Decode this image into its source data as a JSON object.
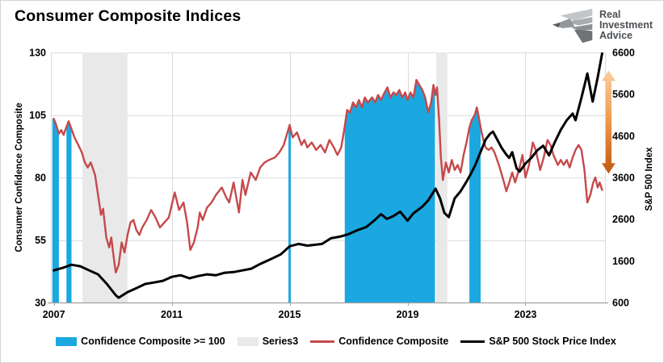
{
  "header": {
    "title": "Consumer Composite Indices",
    "logo_lines": [
      "Real",
      "Investment",
      "Advice"
    ]
  },
  "chart_data": {
    "type": "line",
    "title": "Consumer Composite Indices",
    "grid": true,
    "legend_position": "bottom",
    "x_axis": {
      "min": 2006.9,
      "max": 2025.7,
      "ticks": [
        2007,
        2011,
        2015,
        2019,
        2023
      ]
    },
    "y_left": {
      "label": "Consumer Confidence Composite",
      "min": 30,
      "max": 130,
      "ticks": [
        130,
        105,
        80,
        55,
        30
      ]
    },
    "y_right": {
      "label": "S&P 500 Index",
      "min": 600,
      "max": 6600,
      "ticks": [
        6600,
        5600,
        4600,
        3600,
        2600,
        1600,
        600
      ]
    },
    "colors": {
      "blue": "#1BA7E0",
      "recession_gray": "#E9E9E9",
      "red": "#C6494B",
      "black": "#000000",
      "gridline": "#DBDBDB",
      "axisline": "#A0A0A0"
    },
    "series": [
      {
        "name": "Confidence Composite >= 100",
        "type": "area_highlight",
        "axis": "left",
        "color": "#1BA7E0",
        "threshold": 100,
        "regions": [
          [
            2006.95,
            2007.17
          ],
          [
            2007.43,
            2007.6
          ],
          [
            2014.96,
            2015.04
          ],
          [
            2016.87,
            2019.93
          ],
          [
            2021.1,
            2021.48
          ]
        ]
      },
      {
        "name": "Series3",
        "type": "band",
        "color": "#E9E9E9",
        "regions": [
          [
            2007.97,
            2009.5
          ],
          [
            2019.97,
            2020.35
          ]
        ]
      },
      {
        "name": "Confidence Composite",
        "type": "line",
        "axis": "left",
        "color": "#C6494B",
        "points": [
          [
            2007.0,
            103.5
          ],
          [
            2007.08,
            101
          ],
          [
            2007.17,
            97.5
          ],
          [
            2007.25,
            99
          ],
          [
            2007.33,
            97
          ],
          [
            2007.42,
            100
          ],
          [
            2007.5,
            102.5
          ],
          [
            2007.58,
            100
          ],
          [
            2007.7,
            96
          ],
          [
            2007.83,
            93
          ],
          [
            2007.95,
            90
          ],
          [
            2008.05,
            86
          ],
          [
            2008.15,
            84
          ],
          [
            2008.25,
            86
          ],
          [
            2008.4,
            81
          ],
          [
            2008.5,
            73
          ],
          [
            2008.6,
            65
          ],
          [
            2008.67,
            67.5
          ],
          [
            2008.78,
            56
          ],
          [
            2008.88,
            52
          ],
          [
            2008.95,
            56
          ],
          [
            2009.02,
            49
          ],
          [
            2009.1,
            42
          ],
          [
            2009.2,
            45
          ],
          [
            2009.3,
            54
          ],
          [
            2009.4,
            50
          ],
          [
            2009.5,
            57
          ],
          [
            2009.6,
            62
          ],
          [
            2009.7,
            63
          ],
          [
            2009.8,
            59
          ],
          [
            2009.9,
            57
          ],
          [
            2010.0,
            60
          ],
          [
            2010.15,
            63
          ],
          [
            2010.3,
            67
          ],
          [
            2010.45,
            64
          ],
          [
            2010.6,
            60
          ],
          [
            2010.75,
            62
          ],
          [
            2010.9,
            64
          ],
          [
            2011.0,
            69
          ],
          [
            2011.1,
            74
          ],
          [
            2011.25,
            67
          ],
          [
            2011.4,
            70
          ],
          [
            2011.52,
            62
          ],
          [
            2011.63,
            51
          ],
          [
            2011.75,
            54
          ],
          [
            2011.88,
            60
          ],
          [
            2011.95,
            66
          ],
          [
            2012.05,
            63
          ],
          [
            2012.2,
            68
          ],
          [
            2012.35,
            70
          ],
          [
            2012.5,
            73
          ],
          [
            2012.7,
            76
          ],
          [
            2012.85,
            72
          ],
          [
            2012.95,
            70
          ],
          [
            2013.1,
            78
          ],
          [
            2013.28,
            66
          ],
          [
            2013.4,
            79
          ],
          [
            2013.5,
            73
          ],
          [
            2013.68,
            82
          ],
          [
            2013.85,
            79
          ],
          [
            2014.0,
            84
          ],
          [
            2014.15,
            86
          ],
          [
            2014.3,
            87
          ],
          [
            2014.5,
            88
          ],
          [
            2014.65,
            90
          ],
          [
            2014.8,
            93
          ],
          [
            2014.9,
            97
          ],
          [
            2015.0,
            101
          ],
          [
            2015.1,
            96
          ],
          [
            2015.25,
            98
          ],
          [
            2015.4,
            93
          ],
          [
            2015.5,
            95
          ],
          [
            2015.6,
            92
          ],
          [
            2015.75,
            94
          ],
          [
            2015.9,
            91
          ],
          [
            2016.05,
            93
          ],
          [
            2016.2,
            90
          ],
          [
            2016.35,
            95
          ],
          [
            2016.5,
            92
          ],
          [
            2016.62,
            89
          ],
          [
            2016.75,
            92
          ],
          [
            2016.85,
            99
          ],
          [
            2016.95,
            107
          ],
          [
            2017.05,
            106
          ],
          [
            2017.15,
            110
          ],
          [
            2017.25,
            108
          ],
          [
            2017.35,
            111
          ],
          [
            2017.45,
            108
          ],
          [
            2017.55,
            112
          ],
          [
            2017.65,
            110
          ],
          [
            2017.8,
            112
          ],
          [
            2017.9,
            110
          ],
          [
            2018.0,
            113
          ],
          [
            2018.1,
            111
          ],
          [
            2018.22,
            114
          ],
          [
            2018.32,
            116
          ],
          [
            2018.42,
            112
          ],
          [
            2018.52,
            114
          ],
          [
            2018.62,
            113
          ],
          [
            2018.72,
            115
          ],
          [
            2018.82,
            112
          ],
          [
            2018.92,
            114
          ],
          [
            2019.0,
            111
          ],
          [
            2019.1,
            114
          ],
          [
            2019.2,
            112
          ],
          [
            2019.3,
            119
          ],
          [
            2019.4,
            117
          ],
          [
            2019.5,
            115
          ],
          [
            2019.6,
            112
          ],
          [
            2019.7,
            106
          ],
          [
            2019.8,
            110
          ],
          [
            2019.88,
            117
          ],
          [
            2019.95,
            113
          ],
          [
            2020.0,
            116
          ],
          [
            2020.07,
            103
          ],
          [
            2020.13,
            88
          ],
          [
            2020.2,
            79
          ],
          [
            2020.3,
            86
          ],
          [
            2020.4,
            82
          ],
          [
            2020.5,
            87
          ],
          [
            2020.6,
            83
          ],
          [
            2020.7,
            85
          ],
          [
            2020.8,
            82
          ],
          [
            2020.9,
            89
          ],
          [
            2021.0,
            94
          ],
          [
            2021.1,
            100
          ],
          [
            2021.18,
            103
          ],
          [
            2021.28,
            105
          ],
          [
            2021.35,
            108
          ],
          [
            2021.42,
            104
          ],
          [
            2021.48,
            100
          ],
          [
            2021.57,
            95
          ],
          [
            2021.65,
            92
          ],
          [
            2021.75,
            91
          ],
          [
            2021.85,
            92
          ],
          [
            2021.95,
            90
          ],
          [
            2022.1,
            85
          ],
          [
            2022.25,
            79
          ],
          [
            2022.35,
            74.5
          ],
          [
            2022.45,
            78
          ],
          [
            2022.55,
            82
          ],
          [
            2022.65,
            78
          ],
          [
            2022.8,
            84
          ],
          [
            2022.9,
            89
          ],
          [
            2023.0,
            80
          ],
          [
            2023.12,
            85
          ],
          [
            2023.25,
            94
          ],
          [
            2023.35,
            91
          ],
          [
            2023.5,
            83
          ],
          [
            2023.62,
            88
          ],
          [
            2023.75,
            95
          ],
          [
            2023.85,
            93
          ],
          [
            2023.95,
            89
          ],
          [
            2024.1,
            85
          ],
          [
            2024.2,
            87
          ],
          [
            2024.3,
            85
          ],
          [
            2024.4,
            87
          ],
          [
            2024.5,
            84
          ],
          [
            2024.6,
            88
          ],
          [
            2024.7,
            91
          ],
          [
            2024.8,
            93
          ],
          [
            2024.9,
            91
          ],
          [
            2025.0,
            83
          ],
          [
            2025.1,
            70
          ],
          [
            2025.2,
            73
          ],
          [
            2025.3,
            78
          ],
          [
            2025.37,
            80
          ],
          [
            2025.45,
            76
          ],
          [
            2025.52,
            78
          ],
          [
            2025.6,
            75
          ]
        ]
      },
      {
        "name": "S&P 500 Stock Price Index",
        "type": "line",
        "axis": "right",
        "color": "#000000",
        "points": [
          [
            2007.0,
            1370
          ],
          [
            2007.3,
            1430
          ],
          [
            2007.6,
            1505
          ],
          [
            2007.9,
            1470
          ],
          [
            2008.2,
            1370
          ],
          [
            2008.5,
            1275
          ],
          [
            2008.8,
            1045
          ],
          [
            2009.1,
            775
          ],
          [
            2009.2,
            715
          ],
          [
            2009.5,
            850
          ],
          [
            2009.8,
            945
          ],
          [
            2010.1,
            1045
          ],
          [
            2010.4,
            1080
          ],
          [
            2010.7,
            1120
          ],
          [
            2011.0,
            1215
          ],
          [
            2011.3,
            1255
          ],
          [
            2011.6,
            1180
          ],
          [
            2011.9,
            1235
          ],
          [
            2012.2,
            1275
          ],
          [
            2012.5,
            1255
          ],
          [
            2012.8,
            1315
          ],
          [
            2013.1,
            1330
          ],
          [
            2013.4,
            1370
          ],
          [
            2013.7,
            1410
          ],
          [
            2014.0,
            1525
          ],
          [
            2014.3,
            1620
          ],
          [
            2014.7,
            1755
          ],
          [
            2015.0,
            1950
          ],
          [
            2015.3,
            2005
          ],
          [
            2015.6,
            1965
          ],
          [
            2015.9,
            1990
          ],
          [
            2016.1,
            2005
          ],
          [
            2016.4,
            2140
          ],
          [
            2016.7,
            2180
          ],
          [
            2017.0,
            2240
          ],
          [
            2017.3,
            2335
          ],
          [
            2017.6,
            2410
          ],
          [
            2017.9,
            2585
          ],
          [
            2018.1,
            2720
          ],
          [
            2018.3,
            2605
          ],
          [
            2018.5,
            2665
          ],
          [
            2018.75,
            2780
          ],
          [
            2019.0,
            2565
          ],
          [
            2019.2,
            2740
          ],
          [
            2019.5,
            2900
          ],
          [
            2019.7,
            3050
          ],
          [
            2019.95,
            3330
          ],
          [
            2020.1,
            3100
          ],
          [
            2020.25,
            2750
          ],
          [
            2020.4,
            2650
          ],
          [
            2020.6,
            3100
          ],
          [
            2020.8,
            3270
          ],
          [
            2021.0,
            3500
          ],
          [
            2021.15,
            3690
          ],
          [
            2021.3,
            3900
          ],
          [
            2021.5,
            4250
          ],
          [
            2021.65,
            4510
          ],
          [
            2021.8,
            4650
          ],
          [
            2021.9,
            4700
          ],
          [
            2022.05,
            4500
          ],
          [
            2022.2,
            4300
          ],
          [
            2022.35,
            4150
          ],
          [
            2022.45,
            4070
          ],
          [
            2022.55,
            4205
          ],
          [
            2022.7,
            3820
          ],
          [
            2022.8,
            3740
          ],
          [
            2023.0,
            3935
          ],
          [
            2023.2,
            4070
          ],
          [
            2023.4,
            4250
          ],
          [
            2023.6,
            4360
          ],
          [
            2023.8,
            4130
          ],
          [
            2024.0,
            4455
          ],
          [
            2024.2,
            4745
          ],
          [
            2024.4,
            4975
          ],
          [
            2024.6,
            5130
          ],
          [
            2024.7,
            4975
          ],
          [
            2024.9,
            5515
          ],
          [
            2025.0,
            5805
          ],
          [
            2025.1,
            6095
          ],
          [
            2025.28,
            5420
          ],
          [
            2025.45,
            6000
          ],
          [
            2025.6,
            6575
          ]
        ]
      }
    ],
    "annotations": {
      "arrow": {
        "axis": "right",
        "t": 2025.82,
        "value_top": 6170,
        "value_bottom": 3690,
        "color_top": "#FACFA0",
        "color_mid": "#EF9A4C",
        "color_bottom": "#C1580E"
      }
    }
  }
}
